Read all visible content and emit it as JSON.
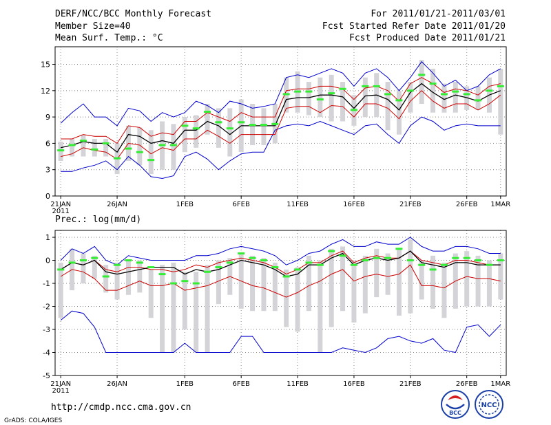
{
  "header": {
    "title": "DERF/NCC/BCC Monthly Forecast",
    "member_size": "Member Size=40",
    "variable": "Mean Surf. Temp.: °C",
    "period": "For 2011/01/21-2011/03/01",
    "started": "Fcst Started Refer Date 2011/01/20",
    "produced": "Fcst Produced Date 2011/01/21"
  },
  "footer": {
    "url": "http://cmdp.ncc.cma.gov.cn",
    "credit": "GrADS: COLA/IGES",
    "logo_bcc": "BCC",
    "logo_ncc": "NCC"
  },
  "colors": {
    "envelope": "#0000cc",
    "spread": "#cc0000",
    "mean": "#000000",
    "median": "#33ee33",
    "box": "#d4d4d8",
    "grid": "#888888"
  },
  "chart_data": [
    {
      "type": "line",
      "title": "Mean Surf. Temp.: °C",
      "x_ticks": [
        "21JAN",
        "26JAN",
        "1FEB",
        "6FEB",
        "11FEB",
        "16FEB",
        "21FEB",
        "26FEB",
        "1MAR"
      ],
      "x_tick_days": [
        0,
        5,
        11,
        16,
        21,
        26,
        31,
        36,
        39
      ],
      "x_year_label": "2011",
      "ylim": [
        0,
        17
      ],
      "y_ticks": [
        0,
        3,
        6,
        9,
        12,
        15
      ],
      "days": [
        0,
        1,
        2,
        3,
        4,
        5,
        6,
        7,
        8,
        9,
        10,
        11,
        12,
        13,
        14,
        15,
        16,
        17,
        18,
        19,
        20,
        21,
        22,
        23,
        24,
        25,
        26,
        27,
        28,
        29,
        30,
        31,
        32,
        33,
        34,
        35,
        36,
        37,
        38,
        39
      ],
      "series": [
        {
          "name": "max",
          "values": [
            8.3,
            9.5,
            10.5,
            9.0,
            9.0,
            8.0,
            10.0,
            9.7,
            8.5,
            9.5,
            9.0,
            9.5,
            10.8,
            10.3,
            9.5,
            10.8,
            10.5,
            10.0,
            10.2,
            10.5,
            13.5,
            13.8,
            13.5,
            14.0,
            14.5,
            14.0,
            12.5,
            14.0,
            14.5,
            13.5,
            12.0,
            13.5,
            15.3,
            14.0,
            12.5,
            13.2,
            12.0,
            12.5,
            13.8,
            14.5
          ]
        },
        {
          "name": "upper",
          "values": [
            6.5,
            6.5,
            7.0,
            6.8,
            6.8,
            6.0,
            8.0,
            7.8,
            6.8,
            7.2,
            7.0,
            8.5,
            8.5,
            9.5,
            9.0,
            8.5,
            9.5,
            9.0,
            9.0,
            9.0,
            12.0,
            12.2,
            12.2,
            12.5,
            12.5,
            12.2,
            11.0,
            12.3,
            12.5,
            12.0,
            10.8,
            12.8,
            13.5,
            12.8,
            11.8,
            12.2,
            12.0,
            11.5,
            12.5,
            12.8
          ]
        },
        {
          "name": "mean",
          "values": [
            5.5,
            5.8,
            6.2,
            6.0,
            6.0,
            5.0,
            7.0,
            6.8,
            6.0,
            6.3,
            6.0,
            7.5,
            7.5,
            8.5,
            8.0,
            7.0,
            8.0,
            8.0,
            8.0,
            8.0,
            11.0,
            11.2,
            11.2,
            11.5,
            11.5,
            11.3,
            10.0,
            11.4,
            11.5,
            11.0,
            9.8,
            11.8,
            12.8,
            11.8,
            11.0,
            11.5,
            11.2,
            10.8,
            11.5,
            12.0
          ]
        },
        {
          "name": "lower",
          "values": [
            4.5,
            4.8,
            5.5,
            5.2,
            5.0,
            4.2,
            6.0,
            5.8,
            4.8,
            5.5,
            5.2,
            6.5,
            6.5,
            7.5,
            6.8,
            6.0,
            7.0,
            7.0,
            7.0,
            7.0,
            10.0,
            10.2,
            10.2,
            9.5,
            10.3,
            10.2,
            9.0,
            10.5,
            10.5,
            10.0,
            8.8,
            10.8,
            12.0,
            10.8,
            10.0,
            10.5,
            10.5,
            9.8,
            10.5,
            11.5
          ]
        },
        {
          "name": "min",
          "values": [
            2.8,
            2.8,
            3.2,
            3.5,
            4.0,
            3.0,
            4.5,
            3.5,
            2.2,
            2.0,
            2.3,
            4.5,
            5.0,
            4.2,
            3.0,
            4.0,
            4.8,
            5.0,
            5.0,
            7.5,
            8.0,
            8.2,
            8.0,
            8.5,
            8.0,
            7.5,
            7.0,
            8.0,
            8.2,
            7.0,
            6.0,
            8.0,
            9.0,
            8.5,
            7.5,
            8.0,
            8.2,
            8.0,
            8.0,
            8.0
          ]
        },
        {
          "name": "median",
          "values": [
            5.2,
            5.8,
            6.3,
            5.3,
            6.0,
            4.3,
            5.4,
            5.0,
            4.1,
            5.8,
            5.8,
            8.0,
            7.7,
            9.6,
            8.4,
            7.7,
            8.4,
            8.1,
            8.1,
            8.2,
            11.6,
            11.9,
            11.9,
            11.0,
            11.7,
            12.2,
            9.8,
            12.5,
            12.5,
            11.6,
            10.9,
            12.0,
            13.8,
            12.8,
            11.6,
            11.9,
            11.6,
            10.9,
            12.0,
            12.5
          ]
        },
        {
          "name": "box_top",
          "values": [
            6.2,
            6.5,
            7.0,
            6.5,
            6.5,
            6.0,
            8.0,
            7.8,
            7.5,
            8.5,
            8.2,
            9.0,
            9.2,
            10.5,
            10.0,
            10.0,
            11.0,
            10.5,
            10.0,
            10.5,
            13.5,
            14.2,
            13.0,
            13.5,
            13.8,
            13.0,
            11.5,
            13.5,
            14.0,
            13.0,
            12.0,
            13.0,
            15.5,
            14.5,
            12.8,
            13.0,
            12.5,
            12.5,
            13.5,
            14.5
          ]
        },
        {
          "name": "box_bottom",
          "values": [
            4.0,
            4.5,
            4.5,
            4.5,
            4.5,
            2.5,
            4.0,
            3.5,
            2.5,
            3.0,
            3.0,
            5.0,
            5.5,
            7.0,
            5.5,
            4.5,
            5.0,
            5.8,
            5.8,
            6.0,
            9.5,
            9.5,
            9.2,
            9.0,
            8.5,
            8.5,
            8.0,
            9.0,
            9.0,
            7.5,
            7.0,
            9.5,
            10.5,
            9.5,
            9.5,
            9.5,
            9.8,
            9.8,
            9.5,
            7.0
          ]
        }
      ]
    },
    {
      "type": "line",
      "title": "Prec.: log(mm/d)",
      "x_ticks": [
        "21JAN",
        "26JAN",
        "1FEB",
        "6FEB",
        "11FEB",
        "16FEB",
        "21FEB",
        "26FEB",
        "1MAR"
      ],
      "x_tick_days": [
        0,
        5,
        11,
        16,
        21,
        26,
        31,
        36,
        39
      ],
      "x_year_label": "2011",
      "ylim": [
        -5,
        1.3
      ],
      "y_ticks": [
        -5,
        -4,
        -3,
        -2,
        -1,
        0,
        1
      ],
      "days": [
        0,
        1,
        2,
        3,
        4,
        5,
        6,
        7,
        8,
        9,
        10,
        11,
        12,
        13,
        14,
        15,
        16,
        17,
        18,
        19,
        20,
        21,
        22,
        23,
        24,
        25,
        26,
        27,
        28,
        29,
        30,
        31,
        32,
        33,
        34,
        35,
        36,
        37,
        38,
        39
      ],
      "series": [
        {
          "name": "max",
          "values": [
            0.0,
            0.5,
            0.3,
            0.6,
            0.0,
            -0.2,
            0.2,
            0.1,
            0.0,
            0.0,
            0.0,
            0.0,
            0.2,
            0.2,
            0.3,
            0.5,
            0.6,
            0.5,
            0.4,
            0.2,
            -0.2,
            0.0,
            0.3,
            0.4,
            0.7,
            0.9,
            0.6,
            0.6,
            0.8,
            0.7,
            0.7,
            1.0,
            0.6,
            0.4,
            0.4,
            0.6,
            0.6,
            0.5,
            0.3,
            0.3
          ]
        },
        {
          "name": "upper",
          "values": [
            -0.4,
            -0.1,
            -0.2,
            0.0,
            -0.4,
            -0.5,
            -0.3,
            -0.3,
            -0.4,
            -0.4,
            -0.5,
            -0.4,
            -0.2,
            -0.3,
            -0.1,
            0.0,
            0.1,
            0.0,
            -0.1,
            -0.3,
            -0.6,
            -0.4,
            -0.1,
            -0.1,
            0.2,
            0.4,
            -0.1,
            0.1,
            0.2,
            0.1,
            0.1,
            0.4,
            0.0,
            -0.1,
            -0.2,
            0.0,
            0.0,
            -0.1,
            -0.2,
            -0.2
          ]
        },
        {
          "name": "mean",
          "values": [
            -0.4,
            -0.1,
            -0.2,
            0.0,
            -0.5,
            -0.6,
            -0.5,
            -0.4,
            -0.3,
            -0.3,
            -0.3,
            -0.6,
            -0.4,
            -0.5,
            -0.4,
            -0.2,
            0.0,
            -0.1,
            -0.2,
            -0.4,
            -0.7,
            -0.6,
            -0.2,
            -0.2,
            0.1,
            0.3,
            -0.2,
            0.0,
            0.1,
            0.0,
            0.1,
            0.4,
            -0.1,
            -0.2,
            -0.3,
            -0.1,
            -0.1,
            -0.2,
            -0.2,
            -0.2
          ]
        },
        {
          "name": "lower",
          "values": [
            -0.7,
            -0.4,
            -0.5,
            -0.8,
            -1.3,
            -1.3,
            -1.1,
            -0.9,
            -1.1,
            -1.1,
            -1.0,
            -1.3,
            -1.2,
            -1.1,
            -0.9,
            -0.7,
            -0.9,
            -1.1,
            -1.2,
            -1.4,
            -1.6,
            -1.4,
            -1.1,
            -0.9,
            -0.6,
            -0.4,
            -0.9,
            -0.7,
            -0.6,
            -0.7,
            -0.6,
            -0.2,
            -1.1,
            -1.1,
            -1.2,
            -0.9,
            -0.7,
            -0.8,
            -0.8,
            -0.9
          ]
        },
        {
          "name": "min",
          "values": [
            -2.6,
            -2.2,
            -2.3,
            -2.9,
            -4.0,
            -4.0,
            -4.0,
            -4.0,
            -4.0,
            -4.0,
            -4.0,
            -3.6,
            -4.0,
            -4.0,
            -4.0,
            -4.0,
            -3.3,
            -3.3,
            -4.0,
            -4.0,
            -4.0,
            -4.0,
            -4.0,
            -4.0,
            -4.0,
            -3.8,
            -3.9,
            -4.0,
            -3.8,
            -3.4,
            -3.3,
            -3.5,
            -3.6,
            -3.4,
            -3.9,
            -4.0,
            -2.9,
            -2.8,
            -3.3,
            -2.8
          ]
        },
        {
          "name": "median",
          "values": [
            -0.4,
            -0.1,
            0.0,
            0.1,
            -0.7,
            -0.2,
            -0.0,
            -0.1,
            -0.3,
            -0.6,
            -1.0,
            -0.9,
            -1.0,
            -0.5,
            -0.3,
            -0.1,
            0.3,
            0.1,
            0.0,
            -0.3,
            -0.7,
            -0.4,
            -0.1,
            -0.2,
            0.4,
            0.2,
            -0.2,
            0.0,
            0.1,
            0.1,
            0.5,
            0.0,
            -0.2,
            -0.4,
            -0.2,
            0.1,
            0.1,
            0.0,
            -0.2,
            0.0
          ]
        },
        {
          "name": "box_top",
          "values": [
            -0.1,
            0.5,
            0.3,
            0.2,
            -0.2,
            -0.1,
            0.0,
            0.0,
            -0.4,
            -0.2,
            -0.1,
            -0.5,
            -0.5,
            -0.2,
            0.0,
            0.1,
            0.3,
            0.2,
            0.1,
            -0.1,
            -0.4,
            -0.3,
            0.2,
            0.0,
            0.5,
            0.6,
            0.0,
            0.2,
            0.5,
            0.3,
            0.5,
            0.9,
            0.0,
            0.2,
            -0.1,
            0.3,
            0.4,
            0.2,
            0.0,
            0.3
          ]
        },
        {
          "name": "box_bottom",
          "values": [
            -2.5,
            -1.3,
            -1.0,
            -0.8,
            -1.4,
            -1.7,
            -1.5,
            -1.4,
            -2.5,
            -4.0,
            -4.0,
            -3.0,
            -4.0,
            -4.0,
            -1.9,
            -1.5,
            -2.1,
            -2.2,
            -2.2,
            -2.2,
            -2.9,
            -3.1,
            -2.2,
            -4.0,
            -2.9,
            -2.2,
            -2.7,
            -2.3,
            -1.6,
            -1.5,
            -2.4,
            -2.3,
            -1.7,
            -2.1,
            -2.5,
            -2.1,
            -2.0,
            -2.0,
            -2.0,
            -1.7
          ]
        }
      ]
    }
  ]
}
